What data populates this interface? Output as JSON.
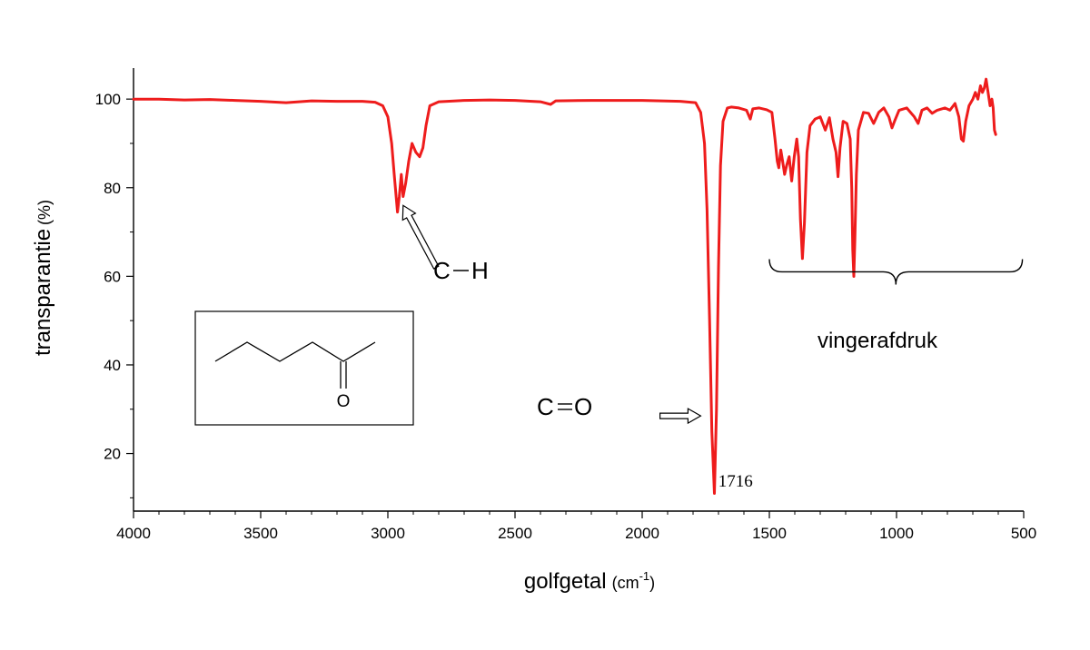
{
  "chart_data": {
    "type": "line",
    "xlabel": "golfgetal",
    "xlabel_unit_base": "(cm",
    "xlabel_unit_exp": "-1",
    "xlabel_unit_close": ")",
    "ylabel": "transparantie",
    "ylabel_unit": "(%)",
    "xlim": [
      4000,
      500
    ],
    "ylim": [
      7,
      107
    ],
    "x_ticks": [
      4000,
      3500,
      3000,
      2500,
      2000,
      1500,
      1000,
      500
    ],
    "x_tick_labels": [
      "4000",
      "3500",
      "3000",
      "2500",
      "2000",
      "1500",
      "1000",
      "500"
    ],
    "y_ticks": [
      20,
      40,
      60,
      80,
      100
    ],
    "y_tick_labels": [
      "20",
      "40",
      "60",
      "80",
      "100"
    ],
    "grid": false,
    "line_color": "#ee1c1c",
    "series": [
      {
        "points": [
          [
            4000,
            100
          ],
          [
            3900,
            100
          ],
          [
            3800,
            99.8
          ],
          [
            3700,
            99.9
          ],
          [
            3600,
            99.7
          ],
          [
            3500,
            99.5
          ],
          [
            3400,
            99.2
          ],
          [
            3300,
            99.6
          ],
          [
            3200,
            99.5
          ],
          [
            3100,
            99.5
          ],
          [
            3050,
            99.3
          ],
          [
            3020,
            98.5
          ],
          [
            3000,
            96
          ],
          [
            2985,
            90
          ],
          [
            2975,
            83
          ],
          [
            2962,
            74.5
          ],
          [
            2955,
            78
          ],
          [
            2947,
            83
          ],
          [
            2940,
            78
          ],
          [
            2930,
            81
          ],
          [
            2918,
            86
          ],
          [
            2905,
            90
          ],
          [
            2890,
            88
          ],
          [
            2875,
            87
          ],
          [
            2862,
            89
          ],
          [
            2850,
            94
          ],
          [
            2835,
            98.5
          ],
          [
            2800,
            99.4
          ],
          [
            2700,
            99.7
          ],
          [
            2600,
            99.8
          ],
          [
            2500,
            99.7
          ],
          [
            2400,
            99.4
          ],
          [
            2360,
            98.8
          ],
          [
            2340,
            99.6
          ],
          [
            2200,
            99.7
          ],
          [
            2000,
            99.7
          ],
          [
            1850,
            99.5
          ],
          [
            1790,
            99.2
          ],
          [
            1770,
            97
          ],
          [
            1755,
            90
          ],
          [
            1745,
            75
          ],
          [
            1735,
            50
          ],
          [
            1726,
            25
          ],
          [
            1716,
            11
          ],
          [
            1708,
            30
          ],
          [
            1700,
            62
          ],
          [
            1692,
            85
          ],
          [
            1682,
            95
          ],
          [
            1665,
            98
          ],
          [
            1650,
            98.2
          ],
          [
            1620,
            98
          ],
          [
            1590,
            97.5
          ],
          [
            1575,
            95.5
          ],
          [
            1565,
            97.8
          ],
          [
            1540,
            98
          ],
          [
            1510,
            97.6
          ],
          [
            1490,
            97
          ],
          [
            1478,
            91
          ],
          [
            1469,
            86
          ],
          [
            1463,
            84.5
          ],
          [
            1455,
            88.5
          ],
          [
            1448,
            86
          ],
          [
            1440,
            83
          ],
          [
            1432,
            85
          ],
          [
            1422,
            87
          ],
          [
            1412,
            81.5
          ],
          [
            1402,
            87
          ],
          [
            1392,
            91
          ],
          [
            1385,
            87
          ],
          [
            1378,
            73
          ],
          [
            1370,
            64
          ],
          [
            1362,
            72
          ],
          [
            1352,
            88
          ],
          [
            1340,
            94
          ],
          [
            1320,
            95.5
          ],
          [
            1300,
            96
          ],
          [
            1280,
            93
          ],
          [
            1264,
            95.8
          ],
          [
            1250,
            91
          ],
          [
            1238,
            88
          ],
          [
            1230,
            82.5
          ],
          [
            1222,
            89
          ],
          [
            1210,
            95
          ],
          [
            1195,
            94.5
          ],
          [
            1182,
            91
          ],
          [
            1176,
            80
          ],
          [
            1172,
            66
          ],
          [
            1168,
            60
          ],
          [
            1164,
            68
          ],
          [
            1158,
            83
          ],
          [
            1150,
            93
          ],
          [
            1130,
            97
          ],
          [
            1110,
            96.8
          ],
          [
            1090,
            94.5
          ],
          [
            1070,
            97
          ],
          [
            1050,
            98
          ],
          [
            1030,
            96
          ],
          [
            1018,
            93.5
          ],
          [
            1008,
            95
          ],
          [
            990,
            97.5
          ],
          [
            960,
            98
          ],
          [
            930,
            96
          ],
          [
            915,
            94.5
          ],
          [
            900,
            97.5
          ],
          [
            880,
            98
          ],
          [
            860,
            96.8
          ],
          [
            840,
            97.5
          ],
          [
            810,
            98
          ],
          [
            790,
            97.5
          ],
          [
            770,
            99
          ],
          [
            755,
            96
          ],
          [
            745,
            91
          ],
          [
            737,
            90.5
          ],
          [
            728,
            95
          ],
          [
            715,
            98.5
          ],
          [
            700,
            100
          ],
          [
            690,
            101.5
          ],
          [
            680,
            100
          ],
          [
            670,
            103
          ],
          [
            662,
            101.5
          ],
          [
            655,
            102.5
          ],
          [
            648,
            104.5
          ],
          [
            640,
            101.5
          ],
          [
            632,
            98.5
          ],
          [
            625,
            100
          ],
          [
            620,
            98
          ],
          [
            615,
            93
          ],
          [
            610,
            92
          ]
        ]
      }
    ],
    "annotations": {
      "ch_label": "C",
      "ch_label_h": "H",
      "co_label": "C",
      "co_label_o": "O",
      "peak_label": "1716",
      "fingerprint_label": "vingerafdruk"
    },
    "annotation_positions": {
      "ch_arrow_head": [
        2940,
        76
      ],
      "ch_arrow_tail": [
        2810,
        62
      ],
      "co_arrow_start": [
        1930,
        28.5
      ],
      "co_arrow_end": [
        1770,
        28.5
      ],
      "brace_from": 1500,
      "brace_to": 505,
      "brace_y": 61,
      "peak_label_at": [
        1715,
        12.5
      ]
    },
    "inset": {
      "atom_label": "O"
    }
  }
}
